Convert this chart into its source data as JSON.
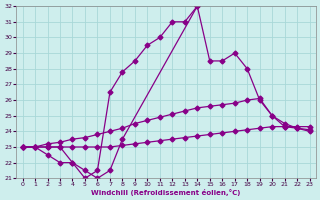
{
  "xlabel": "Windchill (Refroidissement éolien,°C)",
  "ylim": [
    21,
    32
  ],
  "yticks": [
    21,
    22,
    23,
    24,
    25,
    26,
    27,
    28,
    29,
    30,
    31,
    32
  ],
  "xticks": [
    0,
    1,
    2,
    3,
    4,
    5,
    6,
    7,
    8,
    9,
    10,
    11,
    12,
    13,
    14,
    15,
    16,
    17,
    18,
    19,
    20,
    21,
    22,
    23
  ],
  "bg_color": "#ceeeed",
  "grid_color": "#a8d8d8",
  "line_color": "#880088",
  "line1_x": [
    0,
    1,
    2,
    3,
    4,
    5,
    6,
    7,
    8,
    9,
    10,
    11,
    12,
    13,
    14
  ],
  "line1_y": [
    23,
    23,
    23,
    23,
    22,
    21,
    21.5,
    26.5,
    27.8,
    28.5,
    29.5,
    30,
    31,
    31,
    32
  ],
  "line2_x": [
    0,
    1,
    2,
    3,
    4,
    5,
    6,
    7,
    8,
    14,
    15,
    16,
    17,
    18,
    19,
    20,
    21,
    22,
    23
  ],
  "line2_y": [
    23,
    23,
    22.5,
    22,
    22,
    21.5,
    21,
    21.5,
    23.5,
    32,
    28.5,
    28.5,
    29,
    28,
    26,
    25,
    24.3,
    24.2,
    24.0
  ],
  "line3_x": [
    0,
    1,
    2,
    3,
    4,
    5,
    6,
    7,
    8,
    9,
    10,
    11,
    12,
    13,
    14,
    15,
    16,
    17,
    18,
    19,
    20,
    21,
    22,
    23
  ],
  "line3_y": [
    23,
    23,
    23.2,
    23.3,
    23.5,
    23.6,
    23.8,
    24.0,
    24.2,
    24.5,
    24.7,
    24.9,
    25.1,
    25.3,
    25.5,
    25.6,
    25.7,
    25.8,
    26.0,
    26.1,
    25.0,
    24.5,
    24.2,
    24.1
  ],
  "line4_x": [
    0,
    1,
    2,
    3,
    4,
    5,
    6,
    7,
    8,
    9,
    10,
    11,
    12,
    13,
    14,
    15,
    16,
    17,
    18,
    19,
    20,
    21,
    22,
    23
  ],
  "line4_y": [
    23,
    23,
    23,
    23,
    23,
    23,
    23,
    23,
    23.1,
    23.2,
    23.3,
    23.4,
    23.5,
    23.6,
    23.7,
    23.8,
    23.9,
    24.0,
    24.1,
    24.2,
    24.3,
    24.3,
    24.3,
    24.3
  ]
}
